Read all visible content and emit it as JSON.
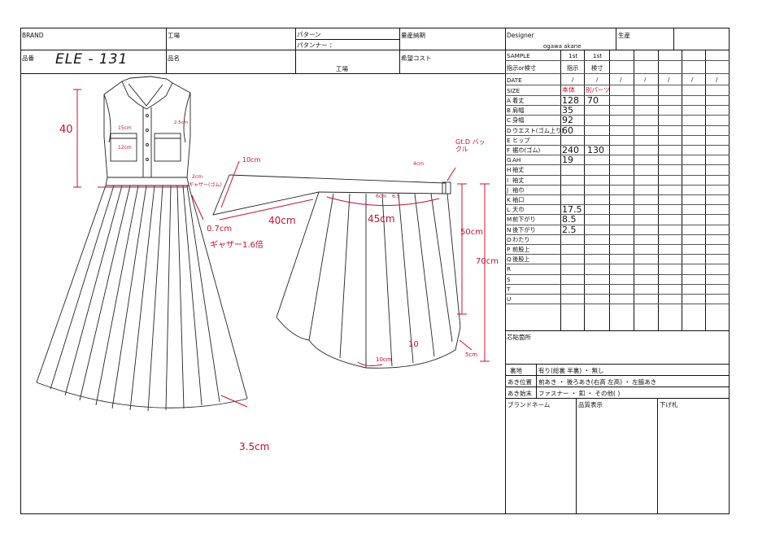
{
  "header": {
    "brand_label": "BRAND",
    "factory_label": "工場",
    "pattern_label": "パターン",
    "patterner_label": "パタンナー ：",
    "mass_delivery_label": "量産納期",
    "designer_label": "Designer",
    "designer_name": "ogawa akane",
    "production_label": "生産",
    "item_no_label": "品番",
    "item_no_value": "ELE - 131",
    "item_name_label": "品名",
    "factory2_label": "工場",
    "target_cost_label": "希望コスト"
  },
  "spec_header": {
    "sample_label": "SAMPLE",
    "sample_cols": [
      "1st",
      "1st"
    ],
    "instruct_label": "指示or検寸",
    "instruct_cols": [
      "指示",
      "検寸"
    ],
    "date_label": "DATE",
    "size_label": "SIZE",
    "size_cols": [
      "本体",
      "別パーツ"
    ]
  },
  "spec_rows": [
    {
      "code": "A",
      "name": "着丈",
      "v1": "128",
      "v2": "70"
    },
    {
      "code": "B",
      "name": "肩幅",
      "v1": "35",
      "v2": ""
    },
    {
      "code": "C",
      "name": "身幅",
      "v1": "92",
      "v2": ""
    },
    {
      "code": "D",
      "name": "ウエスト(ゴム上り)",
      "v1": "60",
      "v2": ""
    },
    {
      "code": "E",
      "name": "ヒップ",
      "v1": "",
      "v2": ""
    },
    {
      "code": "F",
      "name": "裾巾(ゴム)",
      "v1": "240",
      "v2": "130"
    },
    {
      "code": "G",
      "name": "AH",
      "v1": "19",
      "v2": ""
    },
    {
      "code": "H",
      "name": "袖丈",
      "v1": "",
      "v2": ""
    },
    {
      "code": "I",
      "name": "袖丈",
      "v1": "",
      "v2": ""
    },
    {
      "code": "J",
      "name": "袖巾",
      "v1": "",
      "v2": ""
    },
    {
      "code": "K",
      "name": "袖口",
      "v1": "",
      "v2": ""
    },
    {
      "code": "L",
      "name": "天巾",
      "v1": "17.5",
      "v2": ""
    },
    {
      "code": "M",
      "name": "前下がり",
      "v1": "8.5",
      "v2": ""
    },
    {
      "code": "N",
      "name": "後下がり",
      "v1": "2.5",
      "v2": ""
    },
    {
      "code": "O",
      "name": "わたり",
      "v1": "",
      "v2": ""
    },
    {
      "code": "P",
      "name": "前股上",
      "v1": "",
      "v2": ""
    },
    {
      "code": "Q",
      "name": "後股上",
      "v1": "",
      "v2": ""
    },
    {
      "code": "R",
      "name": "",
      "v1": "",
      "v2": ""
    },
    {
      "code": "S",
      "name": "",
      "v1": "",
      "v2": ""
    },
    {
      "code": "T",
      "name": "",
      "v1": "",
      "v2": ""
    },
    {
      "code": "U",
      "name": "",
      "v1": "",
      "v2": ""
    }
  ],
  "footer": {
    "insert_label": "芯貼箇所",
    "lining_label": "裏地",
    "lining_value": "有り(総裏  半裏) ・ 無し",
    "opening_pos_label": "あき位置",
    "opening_pos_value": "前あき ・ 後ろあき(右高  左高) ・ 左脇あき",
    "opening_end_label": "あき始末",
    "opening_end_value": "ファスナー ・ 釦 ・ その他(                    )",
    "brand_name_label": "ブランドネーム",
    "quality_label": "品質表示",
    "tag_label": "下げ札"
  },
  "annotations": {
    "dress_length": "40",
    "pocket_w": "15cm",
    "pocket_h": "12cm",
    "pocket_d": "2.5cm",
    "elastic_1": "2cm",
    "elastic_2": "ギャザー(ゴム)",
    "gather_gap": "0.7cm",
    "gather_ratio": "ギャザー1.6倍",
    "hem_pleat": "3.5cm",
    "belt_width": "10cm",
    "belt_length": "40cm",
    "buckle_note": "Gt.D バックル",
    "buckle_w": "4cm",
    "skirt_small_1": "6cm",
    "skirt_small_2": "6.5",
    "skirt_waist": "45cm",
    "skirt_len_50": "50cm",
    "skirt_len_70": "70cm",
    "hem_10": "10cm",
    "hem_10b": "10",
    "hem_5": "5cm"
  }
}
